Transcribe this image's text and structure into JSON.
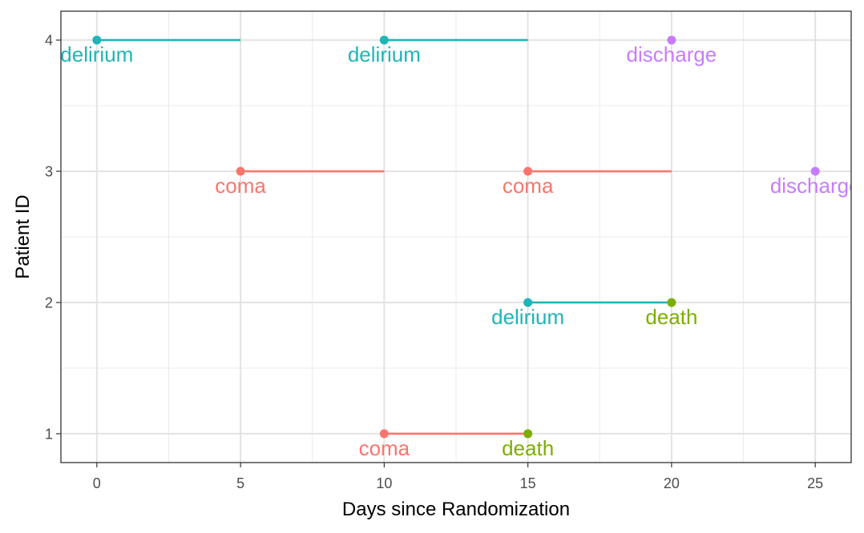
{
  "chart_data": {
    "type": "scatter",
    "xlabel": "Days since Randomization",
    "ylabel": "Patient ID",
    "xlim": [
      -1.25,
      26.25
    ],
    "ylim": [
      0.78,
      4.22
    ],
    "x_ticks": [
      0,
      5,
      10,
      15,
      20,
      25
    ],
    "y_ticks": [
      1,
      2,
      3,
      4
    ],
    "grid": true,
    "legend": "none",
    "colors": {
      "coma": "#F8766D",
      "delirium": "#1FB5B8",
      "death": "#7CAE00",
      "discharge": "#C77CFF"
    },
    "events": [
      {
        "patient": 1,
        "start": 10,
        "end": 15,
        "state": "coma"
      },
      {
        "patient": 1,
        "start": 15,
        "end": null,
        "state": "death"
      },
      {
        "patient": 2,
        "start": 15,
        "end": 20,
        "state": "delirium"
      },
      {
        "patient": 2,
        "start": 20,
        "end": null,
        "state": "death"
      },
      {
        "patient": 3,
        "start": 5,
        "end": 10,
        "state": "coma"
      },
      {
        "patient": 3,
        "start": 15,
        "end": 20,
        "state": "coma"
      },
      {
        "patient": 3,
        "start": 25,
        "end": null,
        "state": "discharge"
      },
      {
        "patient": 4,
        "start": 0,
        "end": 5,
        "state": "delirium"
      },
      {
        "patient": 4,
        "start": 10,
        "end": 15,
        "state": "delirium"
      },
      {
        "patient": 4,
        "start": 20,
        "end": null,
        "state": "discharge"
      }
    ]
  }
}
